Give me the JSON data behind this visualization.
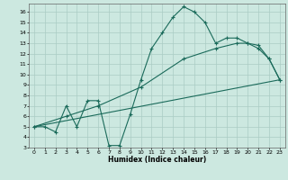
{
  "title": "",
  "xlabel": "Humidex (Indice chaleur)",
  "bg_color": "#cce8e0",
  "grid_color": "#aaccc4",
  "line_color": "#1a6a5a",
  "xlim": [
    -0.5,
    23.5
  ],
  "ylim": [
    3,
    16.8
  ],
  "yticks": [
    3,
    4,
    5,
    6,
    7,
    8,
    9,
    10,
    11,
    12,
    13,
    14,
    15,
    16
  ],
  "xticks": [
    0,
    1,
    2,
    3,
    4,
    5,
    6,
    7,
    8,
    9,
    10,
    11,
    12,
    13,
    14,
    15,
    16,
    17,
    18,
    19,
    20,
    21,
    22,
    23
  ],
  "curve1_x": [
    0,
    1,
    2,
    3,
    4,
    5,
    6,
    7,
    8,
    9,
    10,
    11,
    12,
    13,
    14,
    15,
    16,
    17,
    18,
    19,
    20,
    21,
    22,
    23
  ],
  "curve1_y": [
    5.0,
    5.0,
    4.5,
    7.0,
    5.0,
    7.5,
    7.5,
    3.2,
    3.2,
    6.2,
    9.5,
    12.5,
    14.0,
    15.5,
    16.5,
    16.0,
    15.0,
    13.0,
    13.5,
    13.5,
    13.0,
    12.5,
    11.5,
    9.5
  ],
  "curve2_x": [
    0,
    23
  ],
  "curve2_y": [
    5.0,
    9.5
  ],
  "curve3_x": [
    0,
    3,
    6,
    10,
    14,
    17,
    19,
    20,
    21,
    22,
    23
  ],
  "curve3_y": [
    5.0,
    6.0,
    7.0,
    8.8,
    11.5,
    12.5,
    13.0,
    13.0,
    12.8,
    11.5,
    9.5
  ]
}
